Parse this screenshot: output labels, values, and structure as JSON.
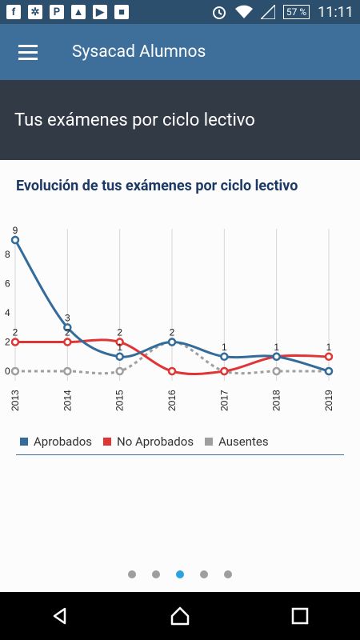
{
  "status_bar": {
    "time": "11:11",
    "battery": "57 %",
    "left_icons": [
      "facebook-icon",
      "app-icon",
      "pinterest-icon",
      "gallery-icon",
      "youtube-icon",
      "bookmark-icon"
    ],
    "right_icons": [
      "alarm-icon",
      "wifi-icon",
      "signal-icon"
    ]
  },
  "app_bar": {
    "title": "Sysacad Alumnos"
  },
  "header": {
    "title": "Tus exámenes por ciclo lectivo"
  },
  "chart_card": {
    "title": "Evolución de tus exámenes por ciclo lectivo"
  },
  "chart_data": {
    "type": "line",
    "categories": [
      "2013",
      "2014",
      "2015",
      "2016",
      "2017",
      "2018",
      "2019"
    ],
    "y_ticks": [
      0,
      2,
      4,
      6,
      8
    ],
    "ylim": [
      0,
      9
    ],
    "series": [
      {
        "name": "Aprobados",
        "color": "#336b9a",
        "style": "solid",
        "values": [
          9,
          3,
          1,
          2,
          1,
          1,
          0
        ]
      },
      {
        "name": "No Aprobados",
        "color": "#e03535",
        "style": "solid",
        "values": [
          2,
          2,
          2,
          0,
          0,
          1,
          1
        ]
      },
      {
        "name": "Ausentes",
        "color": "#9e9e9e",
        "style": "dotted",
        "values": [
          0,
          0,
          0,
          2,
          0,
          0,
          0
        ]
      }
    ],
    "data_labels": [
      {
        "category": "2013",
        "label": "9"
      },
      {
        "category": "2013",
        "label": "2"
      },
      {
        "category": "2014",
        "label": "3"
      },
      {
        "category": "2014",
        "label": "2"
      },
      {
        "category": "2015",
        "label": "1"
      },
      {
        "category": "2015",
        "label": "2"
      },
      {
        "category": "2016",
        "label": "2"
      },
      {
        "category": "2017",
        "label": "1"
      },
      {
        "category": "2018",
        "label": "1"
      },
      {
        "category": "2019",
        "label": "1"
      }
    ],
    "grid": "vertical",
    "legend_position": "bottom-left"
  },
  "pager": {
    "count": 5,
    "active_index": 2
  },
  "nav_bar": {
    "icons": [
      "back-icon",
      "home-icon",
      "recents-icon"
    ]
  }
}
